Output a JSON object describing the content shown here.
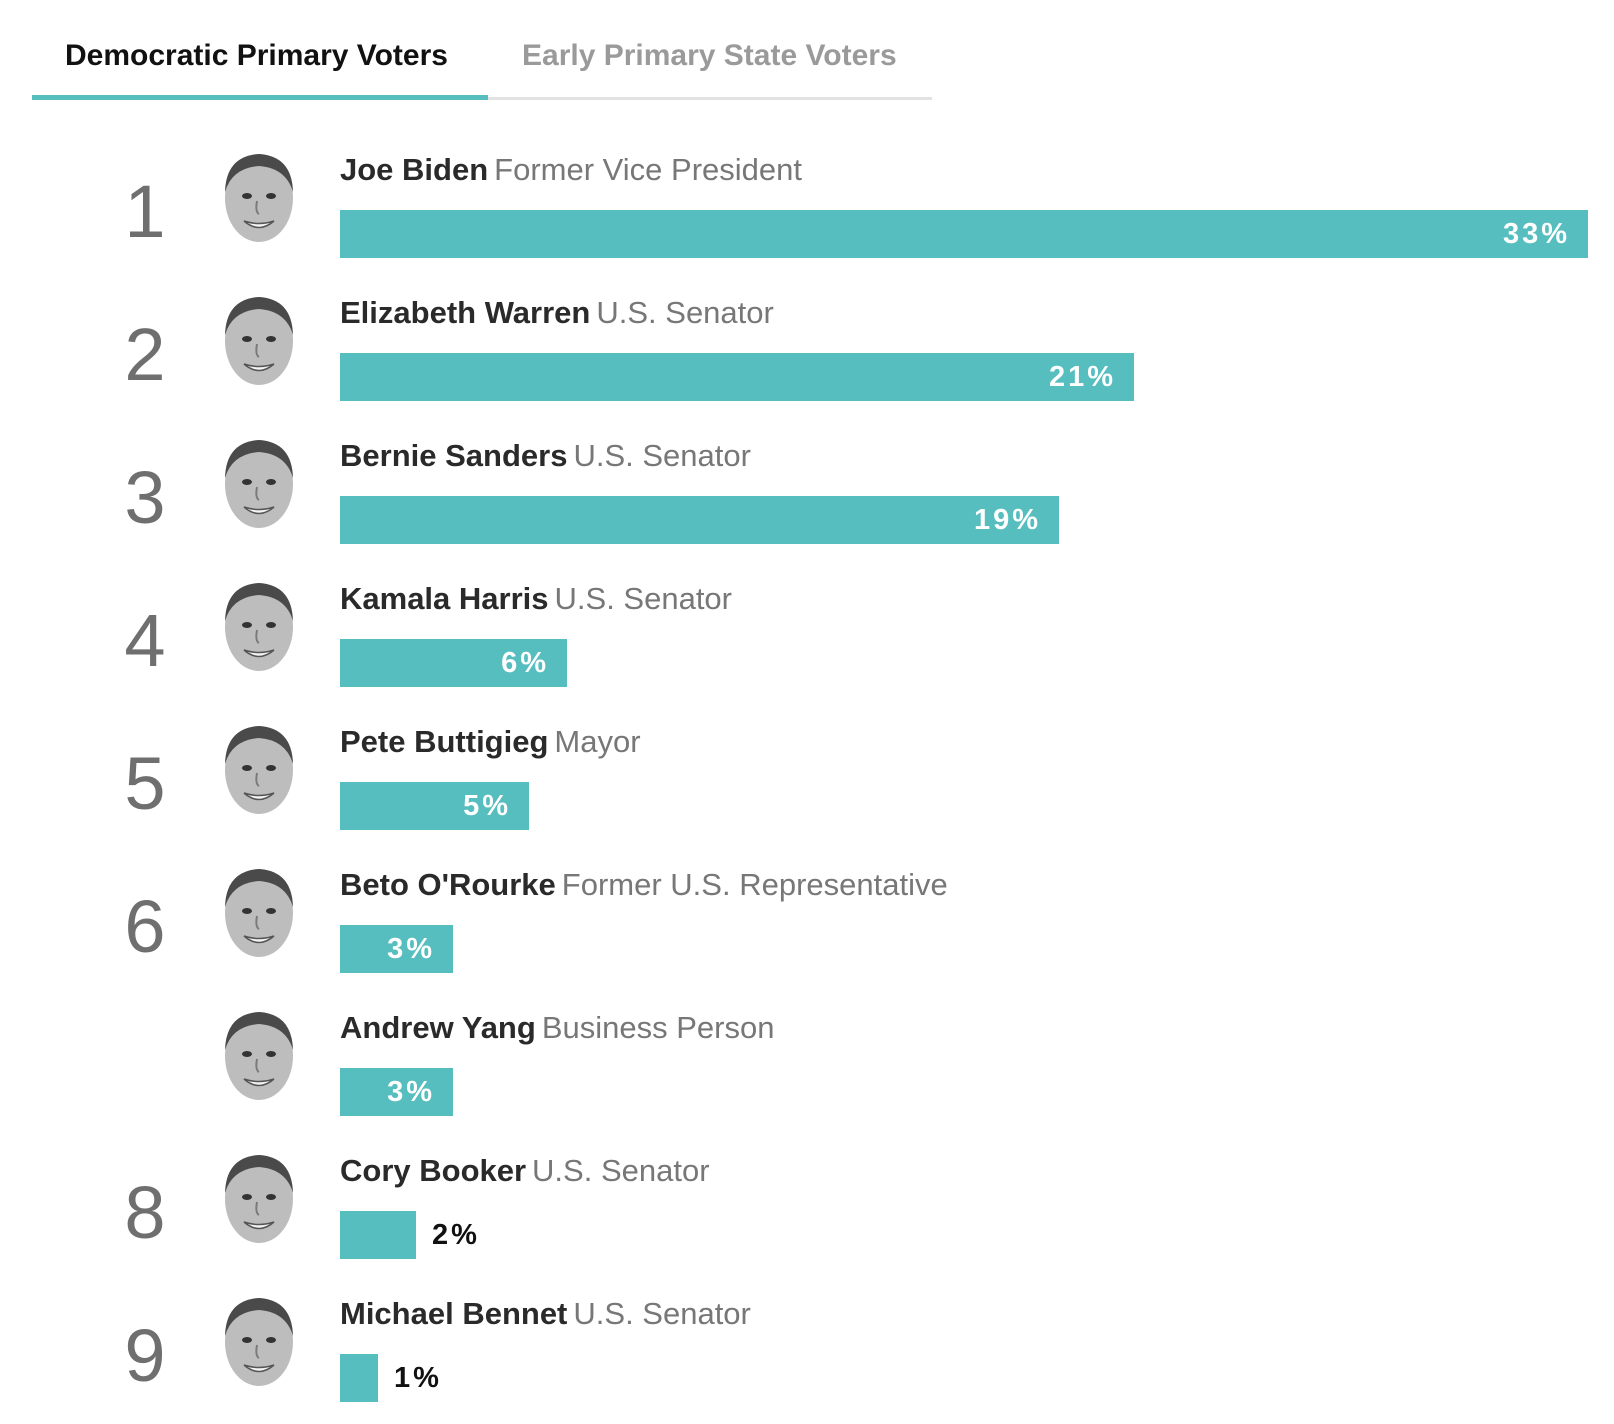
{
  "tabs": [
    {
      "label": "Democratic Primary Voters",
      "active": true
    },
    {
      "label": "Early Primary State Voters",
      "active": false
    }
  ],
  "colors": {
    "bar": "#57bec0",
    "active_tab_underline": "#57bec0"
  },
  "chart_data": {
    "type": "bar",
    "orientation": "horizontal",
    "xlim": [
      0,
      33
    ],
    "categories": [
      "Joe Biden",
      "Elizabeth Warren",
      "Bernie Sanders",
      "Kamala Harris",
      "Pete Buttigieg",
      "Beto O'Rourke",
      "Andrew Yang",
      "Cory Booker",
      "Michael Bennet"
    ],
    "values": [
      33,
      21,
      19,
      6,
      5,
      3,
      3,
      2,
      1
    ],
    "rows": [
      {
        "rank": "1",
        "name": "Joe Biden",
        "office": "Former Vice President",
        "value": 33,
        "label": "33%"
      },
      {
        "rank": "2",
        "name": "Elizabeth Warren",
        "office": "U.S. Senator",
        "value": 21,
        "label": "21%"
      },
      {
        "rank": "3",
        "name": "Bernie Sanders",
        "office": "U.S. Senator",
        "value": 19,
        "label": "19%"
      },
      {
        "rank": "4",
        "name": "Kamala Harris",
        "office": "U.S. Senator",
        "value": 6,
        "label": "6%"
      },
      {
        "rank": "5",
        "name": "Pete Buttigieg",
        "office": "Mayor",
        "value": 5,
        "label": "5%"
      },
      {
        "rank": "6",
        "name": "Beto O'Rourke",
        "office": "Former U.S. Representative",
        "value": 3,
        "label": "3%"
      },
      {
        "rank": "",
        "name": "Andrew Yang",
        "office": "Business Person",
        "value": 3,
        "label": "3%"
      },
      {
        "rank": "8",
        "name": "Cory Booker",
        "office": "U.S. Senator",
        "value": 2,
        "label": "2%"
      },
      {
        "rank": "9",
        "name": "Michael Bennet",
        "office": "U.S. Senator",
        "value": 1,
        "label": "1%"
      }
    ]
  }
}
